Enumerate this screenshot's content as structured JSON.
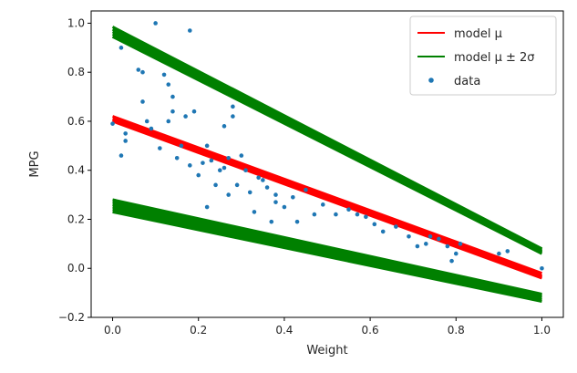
{
  "chart_data": {
    "type": "scatter",
    "title": "",
    "xlabel": "Weight",
    "ylabel": "MPG",
    "xlim": [
      -0.05,
      1.05
    ],
    "ylim": [
      -0.2,
      1.05
    ],
    "xticks": [
      "0.0",
      "0.2",
      "0.4",
      "0.6",
      "0.8",
      "1.0"
    ],
    "yticks": [
      "−0.2",
      "0.0",
      "0.2",
      "0.4",
      "0.6",
      "0.8",
      "1.0"
    ],
    "grid": false,
    "legend_position": "top-right",
    "legend": [
      "model μ",
      "model μ ± 2σ",
      "data"
    ],
    "colors": {
      "model_mu": "#ff0000",
      "model_band": "#008000",
      "data": "#1f77b4"
    },
    "series": [
      {
        "name": "model μ",
        "kind": "line",
        "lines": [
          {
            "x": [
              0,
              1
            ],
            "y": [
              0.62,
              -0.02
            ]
          },
          {
            "x": [
              0,
              1
            ],
            "y": [
              0.61,
              -0.03
            ]
          },
          {
            "x": [
              0,
              1
            ],
            "y": [
              0.605,
              -0.035
            ]
          },
          {
            "x": [
              0,
              1
            ],
            "y": [
              0.6,
              -0.04
            ]
          }
        ]
      },
      {
        "name": "model μ ± 2σ",
        "kind": "line",
        "lines": [
          {
            "x": [
              0,
              1
            ],
            "y": [
              0.985,
              0.08
            ]
          },
          {
            "x": [
              0,
              1
            ],
            "y": [
              0.975,
              0.075
            ]
          },
          {
            "x": [
              0,
              1
            ],
            "y": [
              0.965,
              0.07
            ]
          },
          {
            "x": [
              0,
              1
            ],
            "y": [
              0.955,
              0.065
            ]
          },
          {
            "x": [
              0,
              1
            ],
            "y": [
              0.945,
              0.06
            ]
          },
          {
            "x": [
              0,
              1
            ],
            "y": [
              0.28,
              -0.105
            ]
          },
          {
            "x": [
              0,
              1
            ],
            "y": [
              0.27,
              -0.11
            ]
          },
          {
            "x": [
              0,
              1
            ],
            "y": [
              0.26,
              -0.115
            ]
          },
          {
            "x": [
              0,
              1
            ],
            "y": [
              0.25,
              -0.12
            ]
          },
          {
            "x": [
              0,
              1
            ],
            "y": [
              0.24,
              -0.128
            ]
          },
          {
            "x": [
              0,
              1
            ],
            "y": [
              0.23,
              -0.135
            ]
          }
        ]
      },
      {
        "name": "data",
        "kind": "scatter",
        "points": [
          [
            0.0,
            0.59
          ],
          [
            0.02,
            0.46
          ],
          [
            0.02,
            0.9
          ],
          [
            0.03,
            0.55
          ],
          [
            0.03,
            0.52
          ],
          [
            0.06,
            0.81
          ],
          [
            0.07,
            0.8
          ],
          [
            0.07,
            0.68
          ],
          [
            0.08,
            0.6
          ],
          [
            0.09,
            0.57
          ],
          [
            0.1,
            1.0
          ],
          [
            0.11,
            0.49
          ],
          [
            0.12,
            0.79
          ],
          [
            0.13,
            0.75
          ],
          [
            0.13,
            0.6
          ],
          [
            0.14,
            0.7
          ],
          [
            0.14,
            0.64
          ],
          [
            0.15,
            0.45
          ],
          [
            0.16,
            0.5
          ],
          [
            0.17,
            0.62
          ],
          [
            0.18,
            0.97
          ],
          [
            0.18,
            0.42
          ],
          [
            0.19,
            0.64
          ],
          [
            0.2,
            0.38
          ],
          [
            0.21,
            0.43
          ],
          [
            0.22,
            0.25
          ],
          [
            0.22,
            0.5
          ],
          [
            0.23,
            0.44
          ],
          [
            0.24,
            0.34
          ],
          [
            0.25,
            0.4
          ],
          [
            0.26,
            0.41
          ],
          [
            0.26,
            0.58
          ],
          [
            0.27,
            0.45
          ],
          [
            0.27,
            0.3
          ],
          [
            0.28,
            0.62
          ],
          [
            0.28,
            0.66
          ],
          [
            0.29,
            0.34
          ],
          [
            0.3,
            0.46
          ],
          [
            0.31,
            0.4
          ],
          [
            0.32,
            0.31
          ],
          [
            0.33,
            0.23
          ],
          [
            0.34,
            0.37
          ],
          [
            0.35,
            0.36
          ],
          [
            0.36,
            0.33
          ],
          [
            0.37,
            0.19
          ],
          [
            0.38,
            0.27
          ],
          [
            0.38,
            0.3
          ],
          [
            0.4,
            0.25
          ],
          [
            0.42,
            0.29
          ],
          [
            0.43,
            0.19
          ],
          [
            0.45,
            0.32
          ],
          [
            0.47,
            0.22
          ],
          [
            0.49,
            0.26
          ],
          [
            0.52,
            0.22
          ],
          [
            0.55,
            0.24
          ],
          [
            0.57,
            0.22
          ],
          [
            0.59,
            0.21
          ],
          [
            0.61,
            0.18
          ],
          [
            0.63,
            0.15
          ],
          [
            0.66,
            0.17
          ],
          [
            0.69,
            0.13
          ],
          [
            0.71,
            0.09
          ],
          [
            0.73,
            0.1
          ],
          [
            0.74,
            0.13
          ],
          [
            0.76,
            0.12
          ],
          [
            0.78,
            0.09
          ],
          [
            0.79,
            0.03
          ],
          [
            0.8,
            0.06
          ],
          [
            0.81,
            0.1
          ],
          [
            0.9,
            0.06
          ],
          [
            0.92,
            0.07
          ],
          [
            1.0,
            0.0
          ]
        ]
      }
    ]
  }
}
